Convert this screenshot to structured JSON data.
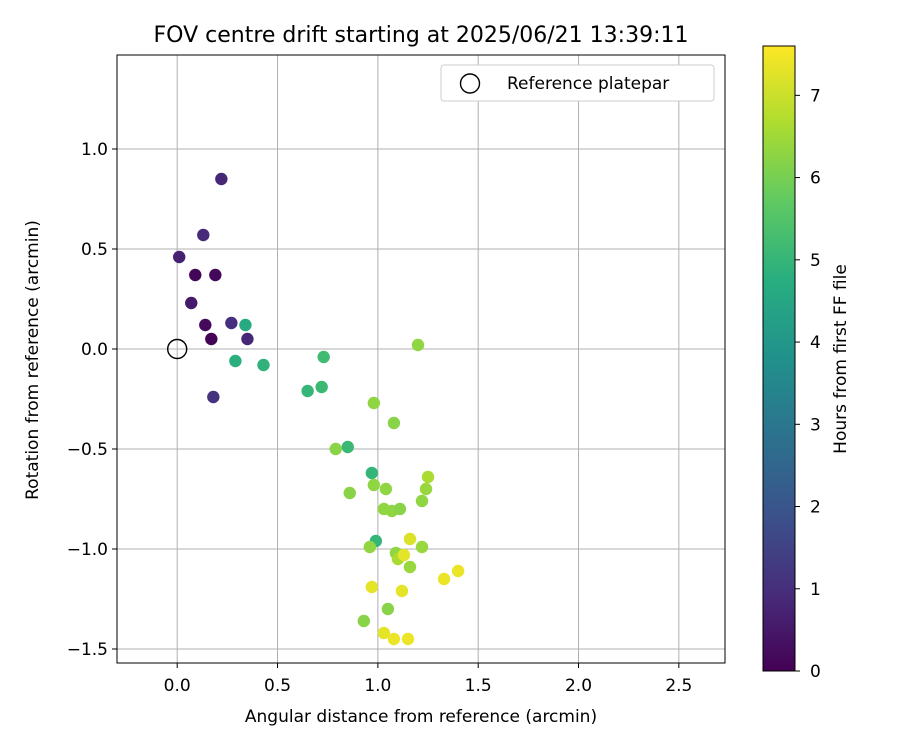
{
  "chart_data": {
    "type": "scatter",
    "title": "FOV centre drift starting at 2025/06/21 13:39:11",
    "xlabel": "Angular distance from reference (arcmin)",
    "ylabel": "Rotation from reference (arcmin)",
    "xlim": [
      -0.3,
      2.73
    ],
    "ylim": [
      -1.57,
      1.47
    ],
    "xticks": [
      0.0,
      0.5,
      1.0,
      1.5,
      2.0,
      2.5
    ],
    "xtick_labels": [
      "0.0",
      "0.5",
      "1.0",
      "1.5",
      "2.0",
      "2.5"
    ],
    "yticks": [
      -1.5,
      -1.0,
      -0.5,
      0.0,
      0.5,
      1.0
    ],
    "ytick_labels": [
      "−1.5",
      "−1.0",
      "−0.5",
      "0.0",
      "0.5",
      "1.0"
    ],
    "grid": true,
    "legend": {
      "position": "top-right",
      "entries": [
        "Reference platepar"
      ]
    },
    "reference_point": {
      "x": 0.0,
      "y": 0.0,
      "label": "Reference platepar",
      "marker": "open-circle"
    },
    "colorbar": {
      "label": "Hours from first FF file",
      "range": [
        0,
        7.6
      ],
      "ticks": [
        0,
        1,
        2,
        3,
        4,
        5,
        6,
        7
      ],
      "tick_labels": [
        "0",
        "1",
        "2",
        "3",
        "4",
        "5",
        "6",
        "7"
      ],
      "colormap": "viridis"
    },
    "series": [
      {
        "points": [
          {
            "x": 0.17,
            "y": 0.05,
            "c": 0.05
          },
          {
            "x": 0.09,
            "y": 0.37,
            "c": 0.1
          },
          {
            "x": 0.19,
            "y": 0.37,
            "c": 0.15
          },
          {
            "x": 0.14,
            "y": 0.12,
            "c": 0.2
          },
          {
            "x": 0.07,
            "y": 0.23,
            "c": 0.55
          },
          {
            "x": 0.01,
            "y": 0.46,
            "c": 0.7
          },
          {
            "x": 0.22,
            "y": 0.85,
            "c": 0.85
          },
          {
            "x": 0.13,
            "y": 0.57,
            "c": 0.9
          },
          {
            "x": 0.35,
            "y": 0.05,
            "c": 0.85
          },
          {
            "x": 0.27,
            "y": 0.13,
            "c": 1.0
          },
          {
            "x": 0.18,
            "y": -0.24,
            "c": 1.1
          },
          {
            "x": 0.34,
            "y": 0.12,
            "c": 4.6
          },
          {
            "x": 0.29,
            "y": -0.06,
            "c": 4.8
          },
          {
            "x": 0.43,
            "y": -0.08,
            "c": 4.9
          },
          {
            "x": 0.73,
            "y": -0.04,
            "c": 5.2
          },
          {
            "x": 0.72,
            "y": -0.19,
            "c": 5.1
          },
          {
            "x": 0.65,
            "y": -0.21,
            "c": 5.0
          },
          {
            "x": 0.85,
            "y": -0.49,
            "c": 5.1
          },
          {
            "x": 0.97,
            "y": -0.62,
            "c": 5.0
          },
          {
            "x": 0.99,
            "y": -0.96,
            "c": 5.0
          },
          {
            "x": 0.79,
            "y": -0.5,
            "c": 6.2
          },
          {
            "x": 0.86,
            "y": -0.72,
            "c": 6.2
          },
          {
            "x": 0.98,
            "y": -0.27,
            "c": 6.3
          },
          {
            "x": 1.2,
            "y": 0.02,
            "c": 6.3
          },
          {
            "x": 1.08,
            "y": -0.37,
            "c": 6.2
          },
          {
            "x": 0.98,
            "y": -0.68,
            "c": 6.3
          },
          {
            "x": 1.04,
            "y": -0.7,
            "c": 6.3
          },
          {
            "x": 1.03,
            "y": -0.8,
            "c": 6.3
          },
          {
            "x": 1.07,
            "y": -0.81,
            "c": 6.3
          },
          {
            "x": 1.11,
            "y": -0.8,
            "c": 6.2
          },
          {
            "x": 1.22,
            "y": -0.76,
            "c": 6.3
          },
          {
            "x": 1.24,
            "y": -0.7,
            "c": 6.4
          },
          {
            "x": 1.25,
            "y": -0.64,
            "c": 6.6
          },
          {
            "x": 0.96,
            "y": -0.99,
            "c": 6.3
          },
          {
            "x": 1.09,
            "y": -1.02,
            "c": 6.3
          },
          {
            "x": 1.1,
            "y": -1.05,
            "c": 6.6
          },
          {
            "x": 1.16,
            "y": -1.09,
            "c": 6.4
          },
          {
            "x": 1.22,
            "y": -0.99,
            "c": 6.4
          },
          {
            "x": 0.93,
            "y": -1.36,
            "c": 6.2
          },
          {
            "x": 1.05,
            "y": -1.3,
            "c": 6.2
          },
          {
            "x": 1.16,
            "y": -0.95,
            "c": 7.2
          },
          {
            "x": 1.13,
            "y": -1.03,
            "c": 7.3
          },
          {
            "x": 0.97,
            "y": -1.19,
            "c": 7.3
          },
          {
            "x": 1.12,
            "y": -1.21,
            "c": 7.3
          },
          {
            "x": 1.03,
            "y": -1.42,
            "c": 7.3
          },
          {
            "x": 1.08,
            "y": -1.45,
            "c": 7.4
          },
          {
            "x": 1.15,
            "y": -1.45,
            "c": 7.4
          },
          {
            "x": 1.33,
            "y": -1.15,
            "c": 7.4
          },
          {
            "x": 1.4,
            "y": -1.11,
            "c": 7.4
          }
        ]
      }
    ]
  }
}
